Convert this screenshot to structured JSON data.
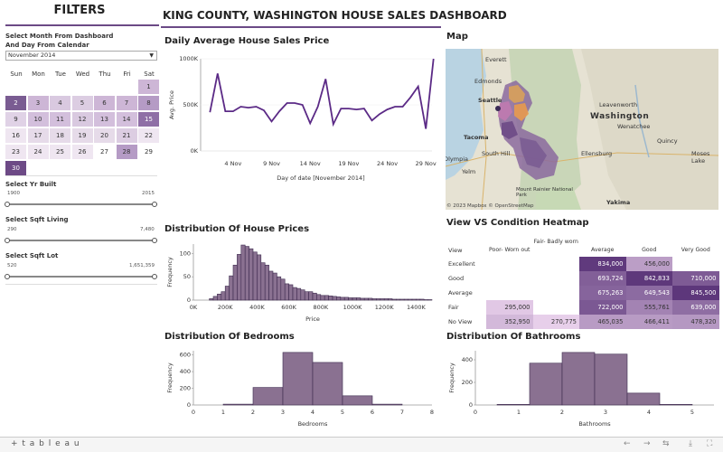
{
  "filters": {
    "title": "FILTERS",
    "month_label_1": "Select Month From Dashboard",
    "month_label_2": "And Day From Calendar",
    "month_value": "November 2014",
    "weekdays": [
      "Sun",
      "Mon",
      "Tue",
      "Wed",
      "Thu",
      "Fri",
      "Sat"
    ],
    "calendar_days": [
      "1",
      "2",
      "3",
      "4",
      "5",
      "6",
      "7",
      "8",
      "9",
      "10",
      "11",
      "12",
      "13",
      "14",
      "15",
      "16",
      "17",
      "18",
      "19",
      "20",
      "21",
      "22",
      "23",
      "24",
      "25",
      "26",
      "27",
      "28",
      "29",
      "30"
    ],
    "yr_built": {
      "label": "Select Yr Built",
      "min": "1900",
      "max": "2015"
    },
    "sqft_living": {
      "label": "Select Sqft Living",
      "min": "290",
      "max": "7,480"
    },
    "sqft_lot": {
      "label": "Select Sqft Lot",
      "min": "520",
      "max": "1,651,359"
    }
  },
  "main_title": "KING COUNTY, WASHINGTON HOUSE SALES DASHBOARD",
  "line_chart": {
    "title": "Daily Average House Sales Price",
    "ylabel": "Avg. Price",
    "xlabel": "Day of date [November 2014]",
    "yticks": [
      "1000K",
      "500K",
      "0K"
    ],
    "xticks": [
      "4 Nov",
      "9 Nov",
      "14 Nov",
      "19 Nov",
      "24 Nov",
      "29 Nov"
    ]
  },
  "price_hist": {
    "title": "Distribution Of House Prices",
    "ylabel": "Frequency",
    "xlabel": "Price",
    "yticks": [
      "100",
      "50",
      "0"
    ],
    "xticks": [
      "0K",
      "200K",
      "400K",
      "600K",
      "800K",
      "1000K",
      "1200K",
      "1400K"
    ]
  },
  "bed_hist": {
    "title": "Distribution Of Bedrooms",
    "ylabel": "Frequency",
    "xlabel": "Bedrooms",
    "yticks": [
      "600",
      "400",
      "200",
      "0"
    ],
    "xticks": [
      "0",
      "1",
      "2",
      "3",
      "4",
      "5",
      "6",
      "7",
      "8"
    ]
  },
  "bath_hist": {
    "title": "Distribution Of Bathrooms",
    "ylabel": "Frequency",
    "xlabel": "Bathrooms",
    "yticks": [
      "400",
      "200",
      "0"
    ],
    "xticks": [
      "0",
      "1",
      "2",
      "3",
      "4",
      "5"
    ]
  },
  "map": {
    "title": "Map",
    "cities": [
      "Everett",
      "Edmonds",
      "Seattle",
      "Tacoma",
      "Olympia",
      "South Hill",
      "Yelm",
      "Leavenworth",
      "Washington",
      "Wenatchee",
      "Quincy",
      "Moses Lake",
      "Ellensburg",
      "Mount Rainier National Park",
      "Yakima"
    ],
    "attribution": "© 2023 Mapbox  © OpenStreetMap"
  },
  "heatmap": {
    "title": "View VS Condition Heatmap",
    "corner": "View",
    "columns": [
      "Poor- Worn out",
      "Fair- Badly worn",
      "Average",
      "Good",
      "Very Good"
    ],
    "rows": [
      {
        "label": "Excellent",
        "cells": [
          "",
          "",
          "834,000",
          "456,000",
          ""
        ]
      },
      {
        "label": "Good",
        "cells": [
          "",
          "",
          "693,724",
          "842,833",
          "710,000"
        ]
      },
      {
        "label": "Average",
        "cells": [
          "",
          "",
          "675,263",
          "649,543",
          "845,500"
        ]
      },
      {
        "label": "Fair",
        "cells": [
          "295,000",
          "",
          "722,000",
          "555,761",
          "639,000"
        ]
      },
      {
        "label": "No View",
        "cells": [
          "352,950",
          "270,775",
          "465,035",
          "466,411",
          "478,320"
        ]
      }
    ]
  },
  "footer": {
    "logo": "+ t a b l e a u"
  },
  "chart_data": [
    {
      "type": "line",
      "title": "Daily Average House Sales Price",
      "xlabel": "Day of date [November 2014]",
      "ylabel": "Avg. Price",
      "x": [
        1,
        2,
        3,
        4,
        5,
        6,
        7,
        8,
        9,
        10,
        11,
        12,
        13,
        14,
        15,
        16,
        17,
        18,
        19,
        20,
        21,
        22,
        23,
        24,
        25,
        26,
        27,
        28,
        29,
        30
      ],
      "y": [
        420000,
        840000,
        430000,
        430000,
        480000,
        470000,
        480000,
        440000,
        320000,
        430000,
        520000,
        520000,
        500000,
        300000,
        480000,
        780000,
        290000,
        460000,
        460000,
        450000,
        460000,
        330000,
        400000,
        450000,
        480000,
        480000,
        580000,
        700000,
        240000,
        1000000
      ],
      "ylim": [
        0,
        1000000
      ]
    },
    {
      "type": "bar",
      "title": "Distribution Of House Prices",
      "xlabel": "Price",
      "ylabel": "Frequency",
      "bin_starts": [
        100000,
        125000,
        150000,
        175000,
        200000,
        225000,
        250000,
        275000,
        300000,
        325000,
        350000,
        375000,
        400000,
        425000,
        450000,
        475000,
        500000,
        525000,
        550000,
        575000,
        600000,
        625000,
        650000,
        675000,
        700000,
        725000,
        750000,
        775000,
        800000,
        825000,
        850000,
        875000,
        900000,
        925000,
        950000,
        975000,
        1000000,
        1025000,
        1050000,
        1075000,
        1100000,
        1125000,
        1150000,
        1175000,
        1200000,
        1225000,
        1250000,
        1275000,
        1300000,
        1325000,
        1350000,
        1375000,
        1400000,
        1425000,
        1450000,
        1475000
      ],
      "bin_width": 25000,
      "values": [
        3,
        8,
        13,
        18,
        30,
        52,
        75,
        98,
        118,
        115,
        110,
        103,
        97,
        80,
        75,
        62,
        58,
        50,
        45,
        35,
        33,
        27,
        25,
        22,
        18,
        18,
        15,
        12,
        10,
        10,
        9,
        8,
        7,
        6,
        6,
        5,
        5,
        5,
        4,
        4,
        4,
        3,
        3,
        3,
        3,
        3,
        2,
        2,
        2,
        2,
        2,
        2,
        2,
        2,
        1,
        1
      ],
      "ylim": [
        0,
        120
      ]
    },
    {
      "type": "bar",
      "title": "Distribution Of Bedrooms",
      "xlabel": "Bedrooms",
      "ylabel": "Frequency",
      "bin_starts": [
        1,
        2,
        3,
        4,
        5,
        6
      ],
      "bin_width": 1,
      "values": [
        10,
        210,
        630,
        510,
        110,
        10
      ],
      "ylim": [
        0,
        650
      ]
    },
    {
      "type": "bar",
      "title": "Distribution Of Bathrooms",
      "xlabel": "Bathrooms",
      "ylabel": "Frequency",
      "bin_starts": [
        0.5,
        1.25,
        2,
        2.75,
        3.5,
        4.25
      ],
      "bin_width": 0.75,
      "values": [
        5,
        370,
        465,
        450,
        105,
        5
      ],
      "ylim": [
        0,
        480
      ]
    }
  ]
}
